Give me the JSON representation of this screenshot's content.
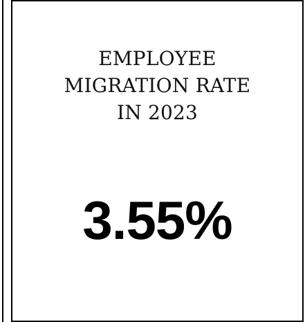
{
  "kpi": {
    "title_lines": [
      "EMPLOYEE",
      "MIGRATION RATE",
      "IN 2023"
    ],
    "value": "3.55%"
  },
  "colors": {
    "background": "#ffffff",
    "border": "#000000",
    "text": "#000000"
  }
}
